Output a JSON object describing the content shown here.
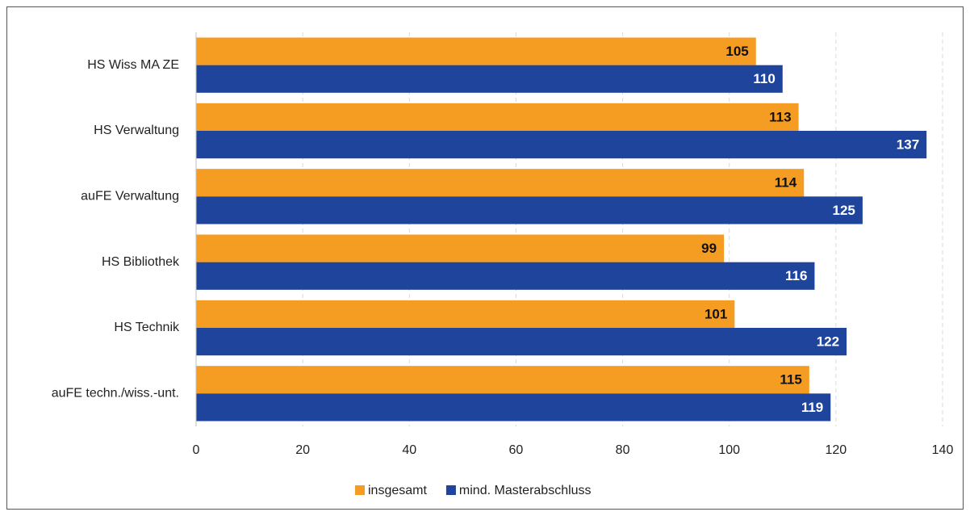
{
  "chart_data": {
    "type": "hbar",
    "categories": [
      "HS Wiss MA ZE",
      "HS Verwaltung",
      "auFE Verwaltung",
      "HS Bibliothek",
      "HS Technik",
      "auFE techn./wiss.-unt."
    ],
    "series": [
      {
        "name": "insgesamt",
        "color": "#f59c22",
        "values": [
          105,
          113,
          114,
          99,
          101,
          115
        ]
      },
      {
        "name": "mind. Masterabschluss",
        "color": "#1f449b",
        "values": [
          110,
          137,
          125,
          116,
          122,
          119
        ]
      }
    ],
    "xlim": [
      0,
      140
    ],
    "xticks": [
      0,
      20,
      40,
      60,
      80,
      100,
      120,
      140
    ],
    "grid": true,
    "legend": "bottom"
  }
}
